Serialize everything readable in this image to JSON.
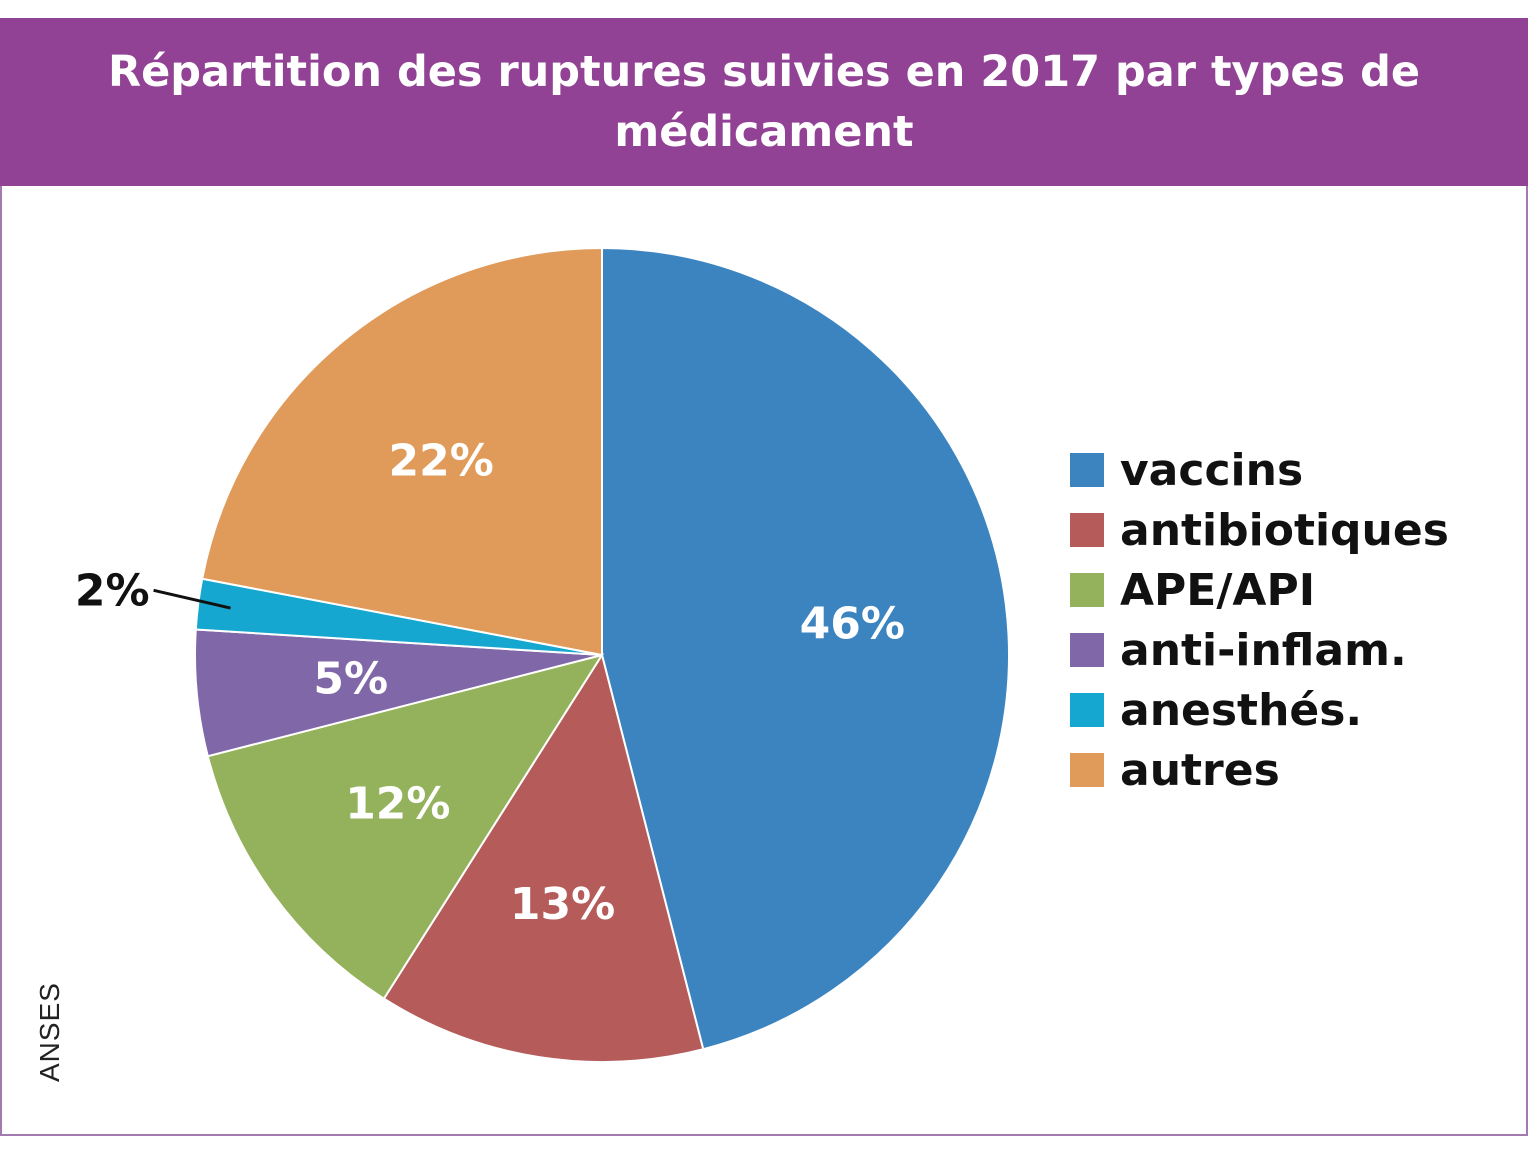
{
  "chart_data": {
    "type": "pie",
    "title": "Répartition des ruptures suivies en 2017 par types de médicament",
    "slices": [
      {
        "name": "vaccins",
        "value": 46,
        "label": "46%",
        "color": "#3c84c0"
      },
      {
        "name": "antibiotiques",
        "value": 13,
        "label": "13%",
        "color": "#b55b5a"
      },
      {
        "name": "APE/API",
        "value": 12,
        "label": "12%",
        "color": "#94b25c"
      },
      {
        "name": "anti-inflam.",
        "value": 5,
        "label": "5%",
        "color": "#8067a7"
      },
      {
        "name": "anesthés.",
        "value": 2,
        "label": "2%",
        "color": "#15a7cf"
      },
      {
        "name": "autres",
        "value": 22,
        "label": "22%",
        "color": "#e09a59"
      }
    ],
    "legend": "right",
    "source": "ANSES"
  },
  "colors": {
    "header_bg": "#924294",
    "frame_border": "#a37ab0"
  }
}
